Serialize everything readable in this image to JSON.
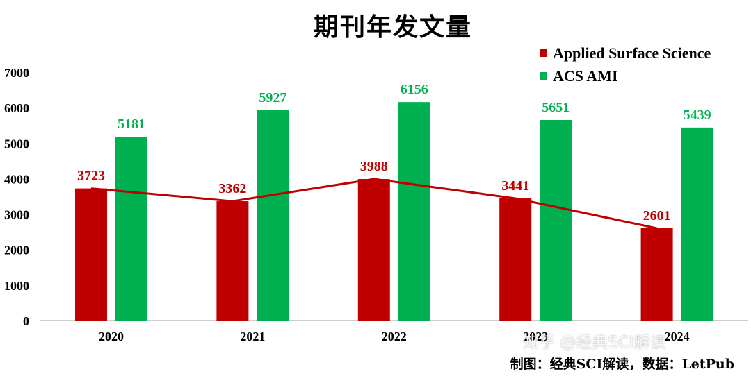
{
  "chart_data": {
    "type": "bar",
    "title": "期刊年发文量",
    "categories": [
      "2020",
      "2021",
      "2022",
      "2023",
      "2024"
    ],
    "series": [
      {
        "name": "Applied Surface Science",
        "values": [
          3723,
          3362,
          3988,
          3441,
          2601
        ],
        "color": "#C00000",
        "trend_line": true
      },
      {
        "name": "ACS AMI",
        "values": [
          5181,
          5927,
          6156,
          5651,
          5439
        ],
        "color": "#00B050"
      }
    ],
    "y_ticks": [
      "0",
      "1000",
      "2000",
      "3000",
      "4000",
      "5000",
      "6000",
      "7000"
    ],
    "ylim": [
      0,
      7000
    ],
    "grid": false,
    "legend_position": "top-right",
    "data_labels": true
  },
  "footer": {
    "credit": "制图：经典SCI解读，数据：LetPub",
    "watermark": "知乎 @经典SCI解读"
  }
}
